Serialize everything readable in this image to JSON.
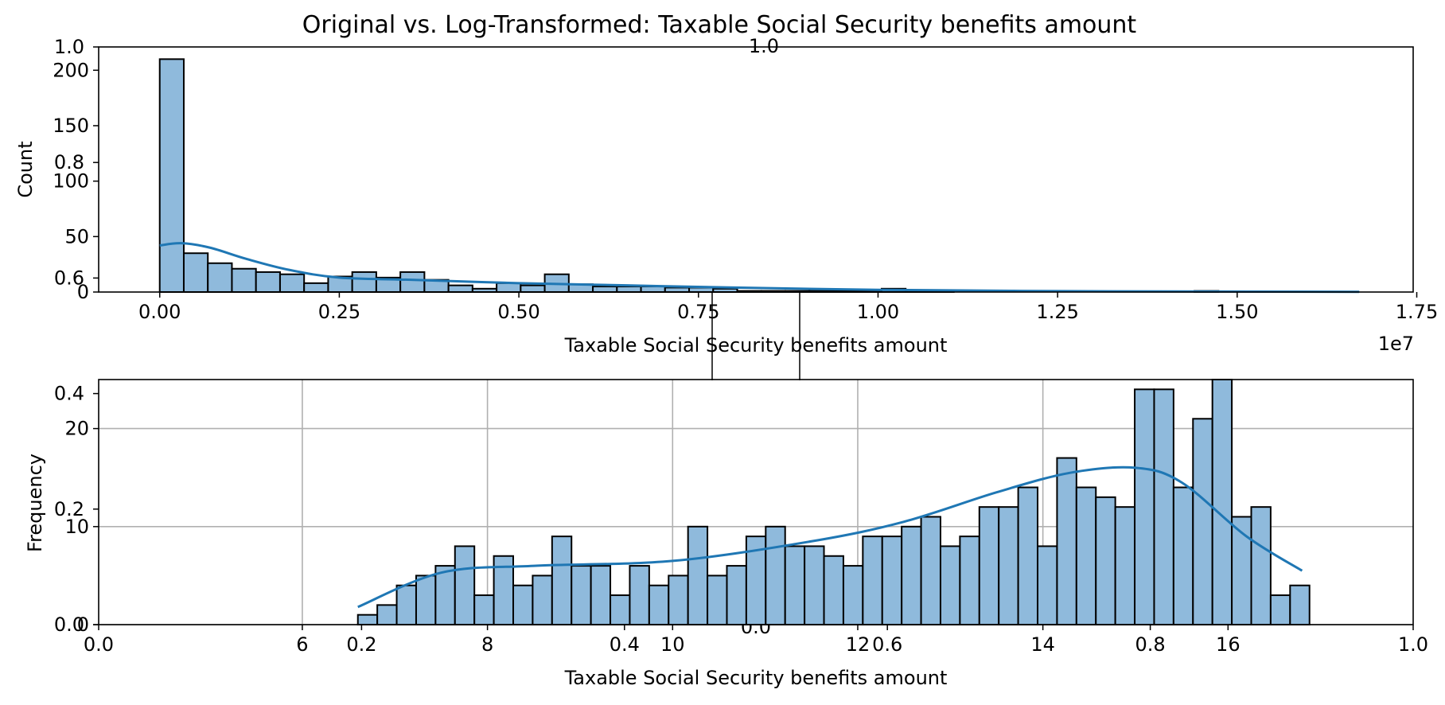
{
  "figure": {
    "title": "Original vs. Log-Transformed: Taxable Social Security benefits amount",
    "overlay_axis": {
      "top_label": "1.0",
      "y_ticks": [
        "0.0",
        "0.2",
        "0.4",
        "0.6",
        "0.8",
        "1.0"
      ],
      "x_ticks": [
        "0.0",
        "0.2",
        "0.4",
        "0.6",
        "0.8",
        "1.0"
      ],
      "center_label": "0.0"
    }
  },
  "chart_data": [
    {
      "type": "bar",
      "subtype": "histogram+kde",
      "xlabel": "Taxable Social Security benefits amount",
      "ylabel": "Count",
      "x_offset_label": "1e7",
      "xlim": [
        -0.085,
        1.745
      ],
      "ylim": [
        0,
        221
      ],
      "x_ticks": [
        0.0,
        0.25,
        0.5,
        0.75,
        1.0,
        1.25,
        1.5,
        1.75
      ],
      "x_tick_labels": [
        "0.00",
        "0.25",
        "0.50",
        "0.75",
        "1.00",
        "1.25",
        "1.50",
        "1.75"
      ],
      "y_ticks": [
        0,
        50,
        100,
        150,
        200
      ],
      "y_tick_labels": [
        "0",
        "50",
        "100",
        "150",
        "200"
      ],
      "grid": false,
      "bin_start": 0.0,
      "bin_width": 0.0335,
      "values": [
        210,
        35,
        26,
        21,
        18,
        16,
        8,
        14,
        18,
        13,
        18,
        11,
        6,
        3,
        8,
        6,
        16,
        7,
        5,
        5,
        5,
        4,
        4,
        3,
        1,
        1,
        1,
        1,
        1,
        1,
        3,
        1,
        1,
        0,
        0,
        0,
        0,
        0,
        0,
        0,
        0,
        0,
        0,
        1,
        0,
        0,
        0,
        0,
        0,
        0
      ],
      "kde": {
        "x": [
          0.0,
          0.03,
          0.07,
          0.12,
          0.18,
          0.25,
          0.35,
          0.5,
          0.65,
          0.8,
          1.0,
          1.2,
          1.4,
          1.67
        ],
        "y": [
          42,
          44,
          40,
          30,
          20,
          13,
          11,
          8,
          6,
          4,
          2,
          1,
          0.5,
          0.2
        ]
      }
    },
    {
      "type": "bar",
      "subtype": "histogram+kde",
      "xlabel": "Taxable Social Security benefits amount",
      "ylabel": "Frequency",
      "xlim": [
        3.8,
        18.0
      ],
      "ylim": [
        0,
        25
      ],
      "x_ticks": [
        6,
        8,
        10,
        12,
        14,
        16
      ],
      "x_tick_labels": [
        "6",
        "8",
        "10",
        "12",
        "14",
        "16"
      ],
      "y_ticks": [
        0,
        10,
        20
      ],
      "y_tick_labels": [
        "0",
        "10",
        "20"
      ],
      "grid": true,
      "bin_start": 6.6,
      "bin_width": 0.2098,
      "values": [
        1,
        2,
        4,
        5,
        6,
        8,
        3,
        7,
        4,
        5,
        9,
        6,
        6,
        3,
        6,
        4,
        5,
        10,
        5,
        6,
        9,
        10,
        8,
        8,
        7,
        6,
        9,
        9,
        10,
        11,
        8,
        9,
        12,
        12,
        14,
        8,
        17,
        14,
        13,
        12,
        24,
        24,
        14,
        21,
        25,
        11,
        12,
        3,
        4
      ],
      "kde": {
        "x": [
          6.6,
          7.5,
          8.5,
          10.0,
          11.5,
          12.5,
          13.5,
          14.3,
          15.0,
          15.5,
          16.2,
          16.8
        ],
        "y": [
          1.8,
          5.3,
          6.0,
          6.5,
          8.5,
          10.5,
          13.5,
          15.5,
          16.0,
          14.5,
          9.0,
          5.5
        ]
      }
    }
  ]
}
